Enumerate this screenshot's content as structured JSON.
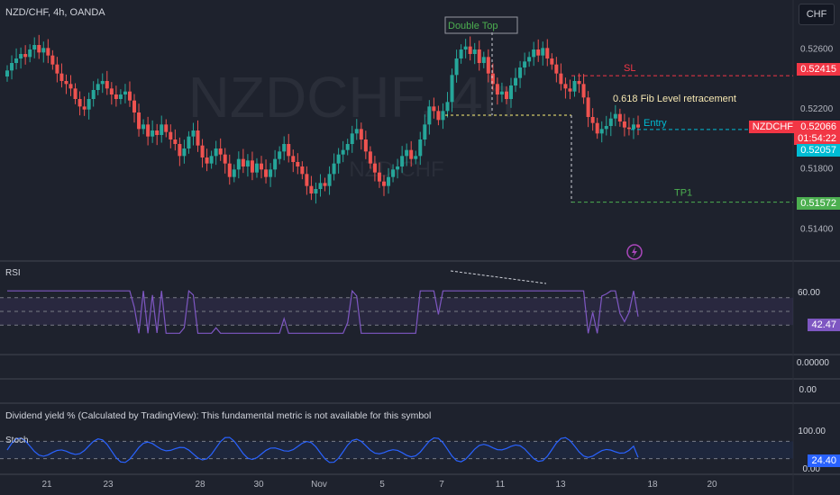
{
  "header": {
    "title": "NZD/CHF, 4h, OANDA",
    "currency_button": "CHF"
  },
  "watermark": {
    "main": "NZDCHF, 4h",
    "sub": "NZD/CHF"
  },
  "annotations": {
    "double_top": "Double Top",
    "sl": "SL",
    "fib": "0.618 Fib Level retracement",
    "entry": "Entry",
    "tp1": "TP1"
  },
  "price_axis": {
    "ticks": [
      "0.52600",
      "0.52200",
      "0.51800",
      "0.51400"
    ],
    "sl_tag": "0.52415",
    "symbol_tag": "NZDCHF",
    "last_price_tag": "0.52066",
    "countdown_tag": "01:54:22",
    "entry_tag": "0.52057",
    "tp1_tag": "0.51572"
  },
  "rsi": {
    "label": "RSI",
    "tick_60": "60.00",
    "value": "42.47"
  },
  "empty_panes": {
    "p1_value": "0.00000",
    "p2_value": "0.00"
  },
  "dividend_note": "Dividend yield % (Calculated by TradingView): This fundamental metric is not available for this symbol",
  "stoch": {
    "label": "Stoch",
    "tick_100": "100.00",
    "tick_0": "0.00",
    "value": "24.40"
  },
  "time_axis": [
    "21",
    "23",
    "28",
    "30",
    "Nov",
    "5",
    "7",
    "11",
    "13",
    "18",
    "20"
  ],
  "colors": {
    "bg": "#1e222d",
    "up": "#26a69a",
    "down": "#ef5350",
    "sl": "#f23645",
    "entry": "#00bcd4",
    "tp": "#4caf50",
    "rsi_line": "#7e57c2",
    "stoch_line": "#2962ff",
    "fib": "#ffeb3b"
  },
  "chart_data": {
    "type": "candlestick",
    "symbol": "NZD/CHF",
    "interval": "4h",
    "ylim": [
      0.513,
      0.528
    ],
    "levels": {
      "sl": 0.52415,
      "last": 0.52066,
      "entry": 0.52057,
      "tp1": 0.51572
    },
    "candles_close": [
      0.5245,
      0.525,
      0.5253,
      0.5256,
      0.5254,
      0.5259,
      0.5262,
      0.5257,
      0.526,
      0.5255,
      0.5249,
      0.5243,
      0.5238,
      0.5236,
      0.5233,
      0.5226,
      0.5221,
      0.5219,
      0.5226,
      0.5232,
      0.5236,
      0.5238,
      0.5233,
      0.5229,
      0.5226,
      0.5229,
      0.5231,
      0.5225,
      0.5217,
      0.5206,
      0.5209,
      0.5201,
      0.5205,
      0.5202,
      0.5209,
      0.5204,
      0.5199,
      0.5196,
      0.5188,
      0.5193,
      0.5201,
      0.5205,
      0.5195,
      0.5187,
      0.5183,
      0.5188,
      0.5193,
      0.5189,
      0.5183,
      0.5174,
      0.5179,
      0.5186,
      0.5181,
      0.5185,
      0.5177,
      0.5183,
      0.5179,
      0.5174,
      0.5179,
      0.5186,
      0.5191,
      0.5196,
      0.5188,
      0.5184,
      0.5181,
      0.5176,
      0.5168,
      0.5163,
      0.5166,
      0.517,
      0.5168,
      0.5176,
      0.5183,
      0.5189,
      0.5192,
      0.5196,
      0.5203,
      0.5206,
      0.5199,
      0.5191,
      0.5183,
      0.5177,
      0.5171,
      0.5168,
      0.5174,
      0.5179,
      0.5181,
      0.5188,
      0.5192,
      0.5186,
      0.5188,
      0.5199,
      0.5209,
      0.5221,
      0.5218,
      0.5212,
      0.5218,
      0.5224,
      0.5242,
      0.5253,
      0.5259,
      0.5261,
      0.5256,
      0.5259,
      0.525,
      0.5254,
      0.5243,
      0.5236,
      0.5229,
      0.5231,
      0.5226,
      0.5235,
      0.524,
      0.5247,
      0.5251,
      0.5254,
      0.5259,
      0.5255,
      0.526,
      0.5253,
      0.5249,
      0.5243,
      0.5236,
      0.5233,
      0.5231,
      0.5238,
      0.5236,
      0.5227,
      0.5214,
      0.521,
      0.5203,
      0.5206,
      0.5208,
      0.5213,
      0.5216,
      0.5211,
      0.5207,
      0.5206,
      0.5209,
      0.5207
    ],
    "rsi": {
      "ylim": [
        0,
        100
      ],
      "bands": [
        70,
        50,
        30
      ],
      "last": 42.47
    },
    "stoch": {
      "ylim": [
        0,
        100
      ],
      "bands": [
        80,
        20
      ],
      "last": 24.4
    }
  }
}
